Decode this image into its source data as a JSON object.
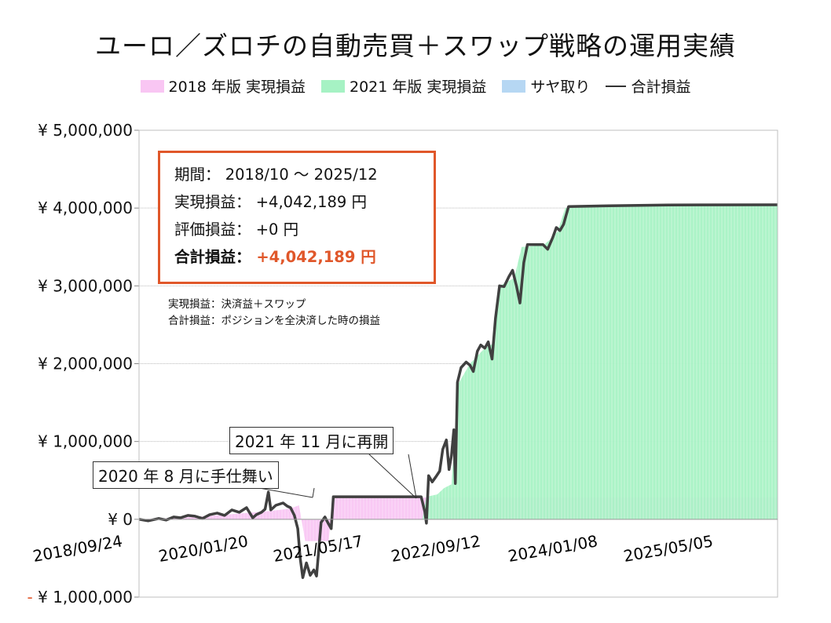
{
  "title": "ユーロ／ズロチの自動売買＋スワップ戦略の運用実績",
  "legend": [
    {
      "label": "2018 年版 実現損益",
      "color": "#f9c6f3"
    },
    {
      "label": "2021 年版 実現損益",
      "color": "#a6f2c4"
    },
    {
      "label": "サヤ取り",
      "color": "#b6d7f3"
    },
    {
      "label": "合計損益",
      "color": "#404040"
    }
  ],
  "info": {
    "period_label": "期間：",
    "period_value": "2018/10 ～ 2025/12",
    "realized_label": "実現損益：",
    "realized_value": "+4,042,189 円",
    "unrealized_label": "評価損益：",
    "unrealized_value": "+0 円",
    "total_label": "合計損益：",
    "total_value": "+4,042,189 円"
  },
  "notes": [
    "実現損益：決済益＋スワップ",
    "合計損益：ポジションを全決済した時の損益"
  ],
  "annotations": [
    {
      "text": "2020 年 8 月に手仕舞い"
    },
    {
      "text": "2021 年 11 月に再開"
    }
  ],
  "chart_data": {
    "type": "area",
    "ylim": [
      -1000000,
      5000000
    ],
    "yticks": [
      -1000000,
      0,
      1000000,
      2000000,
      3000000,
      4000000,
      5000000
    ],
    "ytick_labels": [
      "- ¥ 1,000,000",
      "¥ 0",
      "¥ 1,000,000",
      "¥ 2,000,000",
      "¥ 3,000,000",
      "¥ 4,000,000",
      "¥ 5,000,000"
    ],
    "xlim": [
      "2018/09/24",
      "2025/12/31"
    ],
    "xtick_labels": [
      "2018/09/24",
      "2020/01/20",
      "2021/05/17",
      "2022/09/12",
      "2024/01/08",
      "2025/05/05"
    ],
    "grid": true,
    "legend_position": "top",
    "series": [
      {
        "name": "2018 年版 実現損益",
        "color": "#f9c6f3",
        "points": [
          [
            "2018/09/24",
            0
          ],
          [
            "2019/03/01",
            20000
          ],
          [
            "2019/07/01",
            40000
          ],
          [
            "2019/11/01",
            70000
          ],
          [
            "2020/03/01",
            100000
          ],
          [
            "2020/05/01",
            120000
          ],
          [
            "2020/06/15",
            140000
          ],
          [
            "2020/07/20",
            180000
          ],
          [
            "2020/08/15",
            -280000
          ],
          [
            "2020/10/01",
            -280000
          ],
          [
            "2020/11/20",
            -280000
          ],
          [
            "2020/12/10",
            280000
          ],
          [
            "2025/12/31",
            280000
          ]
        ]
      },
      {
        "name": "2021 年版 実現損益",
        "color": "#a6f2c4",
        "points": [
          [
            "2021/11/01",
            0
          ],
          [
            "2021/12/15",
            0
          ],
          [
            "2022/01/01",
            290000
          ],
          [
            "2022/02/15",
            320000
          ],
          [
            "2022/03/15",
            400000
          ],
          [
            "2022/04/15",
            450000
          ],
          [
            "2022/05/15",
            1750000
          ],
          [
            "2022/07/01",
            2000000
          ],
          [
            "2022/09/01",
            2200000
          ],
          [
            "2022/10/01",
            2250000
          ],
          [
            "2022/11/01",
            3000000
          ],
          [
            "2023/01/01",
            3100000
          ],
          [
            "2023/02/01",
            3500000
          ],
          [
            "2023/05/01",
            3520000
          ],
          [
            "2023/06/01",
            3600000
          ],
          [
            "2023/07/01",
            3700000
          ],
          [
            "2023/08/01",
            4000000
          ],
          [
            "2024/02/01",
            4020000
          ],
          [
            "2025/12/31",
            4042189
          ]
        ]
      },
      {
        "name": "サヤ取り",
        "color": "#b6d7f3",
        "points": []
      },
      {
        "name": "合計損益",
        "color": "#404040",
        "points": [
          [
            "2018/09/24",
            0
          ],
          [
            "2018/11/01",
            -20000
          ],
          [
            "2018/12/15",
            10000
          ],
          [
            "2019/01/15",
            -10000
          ],
          [
            "2019/02/15",
            30000
          ],
          [
            "2019/03/15",
            20000
          ],
          [
            "2019/04/15",
            50000
          ],
          [
            "2019/05/15",
            40000
          ],
          [
            "2019/06/15",
            10000
          ],
          [
            "2019/07/15",
            60000
          ],
          [
            "2019/08/15",
            80000
          ],
          [
            "2019/09/15",
            50000
          ],
          [
            "2019/10/15",
            120000
          ],
          [
            "2019/11/15",
            90000
          ],
          [
            "2019/12/15",
            150000
          ],
          [
            "2020/01/10",
            20000
          ],
          [
            "2020/01/25",
            60000
          ],
          [
            "2020/02/15",
            90000
          ],
          [
            "2020/03/01",
            130000
          ],
          [
            "2020/03/15",
            350000
          ],
          [
            "2020/03/25",
            120000
          ],
          [
            "2020/04/15",
            180000
          ],
          [
            "2020/05/15",
            210000
          ],
          [
            "2020/06/01",
            170000
          ],
          [
            "2020/06/15",
            150000
          ],
          [
            "2020/07/01",
            50000
          ],
          [
            "2020/07/15",
            -120000
          ],
          [
            "2020/07/25",
            -500000
          ],
          [
            "2020/08/05",
            -750000
          ],
          [
            "2020/08/20",
            -560000
          ],
          [
            "2020/09/05",
            -720000
          ],
          [
            "2020/09/20",
            -650000
          ],
          [
            "2020/10/01",
            -730000
          ],
          [
            "2020/10/20",
            -40000
          ],
          [
            "2020/11/05",
            30000
          ],
          [
            "2020/11/20",
            -60000
          ],
          [
            "2020/12/01",
            -120000
          ],
          [
            "2020/12/10",
            290000
          ],
          [
            "2021/12/10",
            290000
          ],
          [
            "2021/12/25",
            100000
          ],
          [
            "2022/01/01",
            -50000
          ],
          [
            "2022/01/10",
            560000
          ],
          [
            "2022/01/25",
            480000
          ],
          [
            "2022/02/10",
            550000
          ],
          [
            "2022/02/25",
            620000
          ],
          [
            "2022/03/10",
            900000
          ],
          [
            "2022/03/25",
            1020000
          ],
          [
            "2022/04/05",
            640000
          ],
          [
            "2022/04/15",
            820000
          ],
          [
            "2022/04/25",
            1150000
          ],
          [
            "2022/05/01",
            460000
          ],
          [
            "2022/05/10",
            1760000
          ],
          [
            "2022/05/25",
            1950000
          ],
          [
            "2022/06/15",
            2020000
          ],
          [
            "2022/07/01",
            1980000
          ],
          [
            "2022/07/15",
            1900000
          ],
          [
            "2022/08/01",
            2160000
          ],
          [
            "2022/08/15",
            2240000
          ],
          [
            "2022/09/01",
            2200000
          ],
          [
            "2022/09/15",
            2280000
          ],
          [
            "2022/10/01",
            2060000
          ],
          [
            "2022/10/15",
            2580000
          ],
          [
            "2022/11/01",
            3000000
          ],
          [
            "2022/11/20",
            2990000
          ],
          [
            "2022/12/10",
            3120000
          ],
          [
            "2022/12/25",
            3200000
          ],
          [
            "2023/01/10",
            3000000
          ],
          [
            "2023/01/25",
            2780000
          ],
          [
            "2023/02/10",
            3300000
          ],
          [
            "2023/02/25",
            3530000
          ],
          [
            "2023/05/01",
            3530000
          ],
          [
            "2023/05/20",
            3470000
          ],
          [
            "2023/06/10",
            3620000
          ],
          [
            "2023/06/25",
            3750000
          ],
          [
            "2023/07/10",
            3710000
          ],
          [
            "2023/07/25",
            3790000
          ],
          [
            "2023/08/15",
            4020000
          ],
          [
            "2024/02/01",
            4030000
          ],
          [
            "2024/10/01",
            4040000
          ],
          [
            "2025/12/31",
            4042189
          ]
        ]
      }
    ]
  }
}
